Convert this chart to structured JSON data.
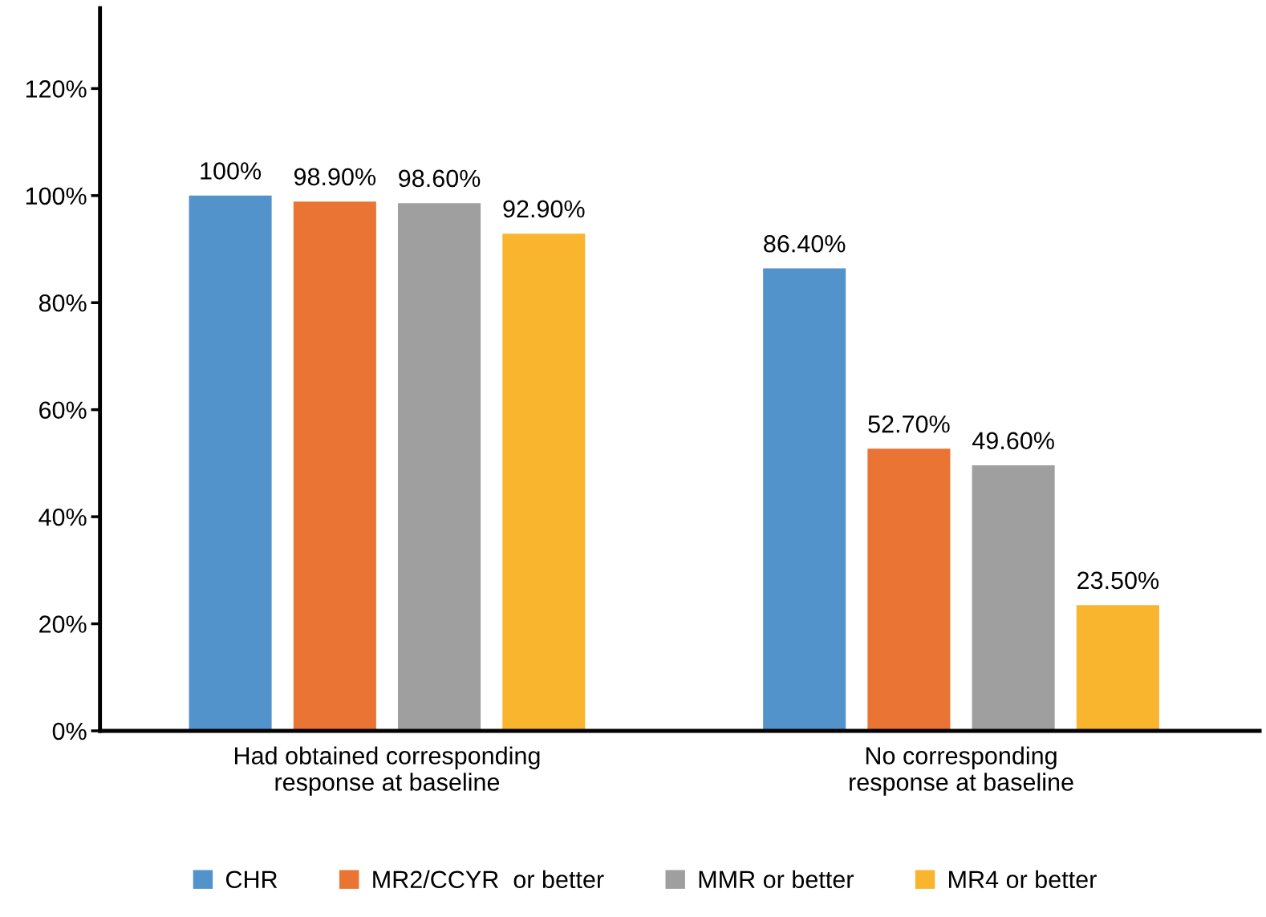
{
  "chart_data": {
    "type": "bar",
    "categories": [
      "Had obtained corresponding\nresponse at baseline",
      "No corresponding\nresponse at baseline"
    ],
    "series": [
      {
        "name": "CHR",
        "color": "#5293cb",
        "values": [
          100,
          86.4
        ],
        "value_labels": [
          "100%",
          "86.40%"
        ]
      },
      {
        "name": "MR2/CCYR  or better",
        "color": "#ea7433",
        "values": [
          98.9,
          52.7
        ],
        "value_labels": [
          "98.90%",
          "52.70%"
        ]
      },
      {
        "name": "MMR or better",
        "color": "#9f9f9f",
        "values": [
          98.6,
          49.6
        ],
        "value_labels": [
          "98.60%",
          "49.60%"
        ]
      },
      {
        "name": "MR4 or better",
        "color": "#fab52f",
        "values": [
          92.9,
          23.5
        ],
        "value_labels": [
          "92.90%",
          "23.50%"
        ]
      }
    ],
    "ylim": [
      0,
      135
    ],
    "yticks": [
      {
        "value": 0,
        "label": "0%"
      },
      {
        "value": 20,
        "label": "20%"
      },
      {
        "value": 40,
        "label": "40%"
      },
      {
        "value": 60,
        "label": "60%"
      },
      {
        "value": 80,
        "label": "80%"
      },
      {
        "value": 100,
        "label": "100%"
      },
      {
        "value": 120,
        "label": "120%"
      }
    ],
    "grid": false,
    "legend": "bottom"
  }
}
